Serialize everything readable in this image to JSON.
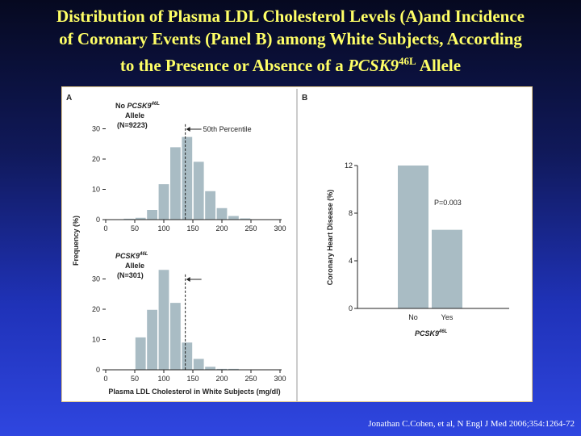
{
  "slide": {
    "title_line1": "Distribution of Plasma LDL Cholesterol Levels (A)and Incidence",
    "title_line2": "of Coronary Events (Panel B) among White Subjects, According",
    "title_line3_pre": "to the Presence or Absence of a ",
    "title_gene": "PCSK9",
    "title_sup": "46L",
    "title_line3_post": " Allele",
    "citation": "Jonathan C.Cohen, et al, N Engl J Med 2006;354:1264-72"
  },
  "colors": {
    "bar": "#a9bcc4",
    "axis": "#222222",
    "title": "#ffff66"
  },
  "chart_data": [
    {
      "type": "bar",
      "panel": "A",
      "panel_label": "A",
      "group_label": [
        "No ",
        "PCSK9",
        "46L",
        "Allele",
        "(N=9223)"
      ],
      "annotation": "50th Percentile",
      "median_line_x": 137,
      "xlabel": "Plasma LDL Cholesterol in White Subjects (mg/dl)",
      "ylabel": "Frequency (%)",
      "x_ticks": [
        0,
        50,
        100,
        150,
        200,
        250,
        300
      ],
      "y_ticks": [
        0,
        10,
        20,
        30
      ],
      "xlim": [
        0,
        300
      ],
      "ylim": [
        0,
        30
      ],
      "bin_width": 20,
      "x": [
        40,
        60,
        80,
        100,
        120,
        140,
        160,
        180,
        200,
        220,
        240,
        260,
        280
      ],
      "values": [
        0.3,
        0.6,
        3.2,
        11.7,
        23.9,
        27.3,
        19.1,
        9.4,
        3.8,
        1.2,
        0.4,
        0.1,
        0.05
      ]
    },
    {
      "type": "bar",
      "panel": "A-lower",
      "group_label": [
        "",
        "PCSK9",
        "46L",
        "Allele",
        "(N=301)"
      ],
      "median_line_x": 137,
      "x_ticks": [
        0,
        50,
        100,
        150,
        200,
        250,
        300
      ],
      "y_ticks": [
        0,
        10,
        20,
        30
      ],
      "xlim": [
        0,
        300
      ],
      "ylim": [
        0,
        30
      ],
      "bin_width": 20,
      "x": [
        60,
        80,
        100,
        120,
        140,
        160,
        180,
        200,
        220
      ],
      "values": [
        10.7,
        19.8,
        33.0,
        22.1,
        9.0,
        3.6,
        1.0,
        0.3,
        0.3
      ]
    },
    {
      "type": "bar",
      "panel": "B",
      "panel_label": "B",
      "categories": [
        "No",
        "Yes"
      ],
      "values": [
        12.0,
        6.6
      ],
      "ylabel": "Coronary Heart Disease (%)",
      "xlabel_gene": "PCSK9",
      "xlabel_sup": "46L",
      "annotation": "P=0.003",
      "y_ticks": [
        0,
        4,
        8,
        12
      ],
      "ylim": [
        0,
        12
      ]
    }
  ]
}
